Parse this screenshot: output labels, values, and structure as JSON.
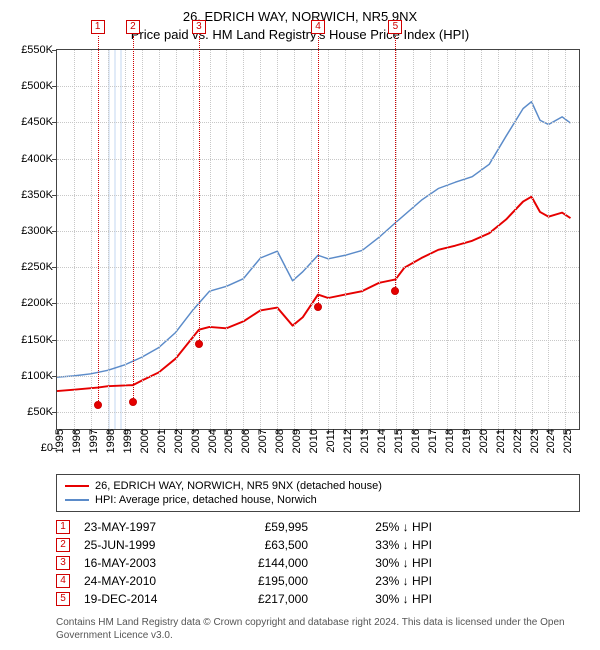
{
  "title": {
    "line1": "26, EDRICH WAY, NORWICH, NR5 9NX",
    "line2": "Price paid vs. HM Land Registry's House Price Index (HPI)"
  },
  "chart": {
    "type": "line",
    "xlim": [
      1995,
      2025.8
    ],
    "ylim": [
      0,
      550000
    ],
    "ytick_step": 50000,
    "y_ticks": [
      {
        "v": 0,
        "label": "£0"
      },
      {
        "v": 50000,
        "label": "£50K"
      },
      {
        "v": 100000,
        "label": "£100K"
      },
      {
        "v": 150000,
        "label": "£150K"
      },
      {
        "v": 200000,
        "label": "£200K"
      },
      {
        "v": 250000,
        "label": "£250K"
      },
      {
        "v": 300000,
        "label": "£300K"
      },
      {
        "v": 350000,
        "label": "£350K"
      },
      {
        "v": 400000,
        "label": "£400K"
      },
      {
        "v": 450000,
        "label": "£450K"
      },
      {
        "v": 500000,
        "label": "£500K"
      },
      {
        "v": 550000,
        "label": "£550K"
      }
    ],
    "x_ticks": [
      1995,
      1996,
      1997,
      1998,
      1999,
      2000,
      2001,
      2002,
      2003,
      2004,
      2005,
      2006,
      2007,
      2008,
      2009,
      2010,
      2011,
      2012,
      2013,
      2014,
      2015,
      2016,
      2017,
      2018,
      2019,
      2020,
      2021,
      2022,
      2023,
      2024,
      2025
    ],
    "hatch_years": [
      [
        1998,
        1999
      ]
    ],
    "grid_color": "#c8c8c8",
    "axis_color": "#444444",
    "background_color": "#ffffff",
    "series": [
      {
        "name": "property",
        "label": "26, EDRICH WAY, NORWICH, NR5 9NX (detached house)",
        "color": "#e60000",
        "width": 2,
        "points": [
          [
            1995,
            55000
          ],
          [
            1996,
            57000
          ],
          [
            1997.4,
            59995
          ],
          [
            1998,
            62000
          ],
          [
            1999.48,
            63500
          ],
          [
            2000,
            70000
          ],
          [
            2001,
            82000
          ],
          [
            2002,
            102000
          ],
          [
            2003.37,
            144000
          ],
          [
            2004,
            148000
          ],
          [
            2005,
            146000
          ],
          [
            2006,
            156000
          ],
          [
            2007,
            172000
          ],
          [
            2008,
            176000
          ],
          [
            2008.9,
            150000
          ],
          [
            2009.5,
            162000
          ],
          [
            2010.4,
            195000
          ],
          [
            2011,
            190000
          ],
          [
            2012,
            195000
          ],
          [
            2013,
            200000
          ],
          [
            2014,
            212000
          ],
          [
            2014.97,
            217000
          ],
          [
            2015.5,
            234000
          ],
          [
            2016.5,
            248000
          ],
          [
            2017.5,
            260000
          ],
          [
            2018.5,
            266000
          ],
          [
            2019.5,
            273000
          ],
          [
            2020.5,
            284000
          ],
          [
            2021.5,
            304000
          ],
          [
            2022.5,
            330000
          ],
          [
            2023,
            337000
          ],
          [
            2023.5,
            315000
          ],
          [
            2024,
            308000
          ],
          [
            2024.8,
            314000
          ],
          [
            2025.3,
            306000
          ]
        ]
      },
      {
        "name": "hpi",
        "label": "HPI: Average price, detached house, Norwich",
        "color": "#5b8bc9",
        "width": 1.5,
        "points": [
          [
            1995,
            75000
          ],
          [
            1996,
            77000
          ],
          [
            1997,
            80000
          ],
          [
            1998,
            85000
          ],
          [
            1999,
            93000
          ],
          [
            2000,
            104000
          ],
          [
            2001,
            118000
          ],
          [
            2002,
            140000
          ],
          [
            2003,
            172000
          ],
          [
            2004,
            200000
          ],
          [
            2005,
            207000
          ],
          [
            2006,
            218000
          ],
          [
            2007,
            248000
          ],
          [
            2008,
            258000
          ],
          [
            2008.9,
            215000
          ],
          [
            2009.5,
            228000
          ],
          [
            2010.4,
            252000
          ],
          [
            2011,
            247000
          ],
          [
            2012,
            252000
          ],
          [
            2013,
            259000
          ],
          [
            2014,
            278000
          ],
          [
            2015,
            300000
          ],
          [
            2016.5,
            332000
          ],
          [
            2017.5,
            349000
          ],
          [
            2018.5,
            358000
          ],
          [
            2019.5,
            366000
          ],
          [
            2020.5,
            384000
          ],
          [
            2021.5,
            425000
          ],
          [
            2022.5,
            465000
          ],
          [
            2023,
            475000
          ],
          [
            2023.5,
            448000
          ],
          [
            2024,
            442000
          ],
          [
            2024.8,
            453000
          ],
          [
            2025.3,
            444000
          ]
        ]
      }
    ],
    "sale_markers": [
      {
        "n": 1,
        "x": 1997.4,
        "y": 59995
      },
      {
        "n": 2,
        "x": 1999.48,
        "y": 63500
      },
      {
        "n": 3,
        "x": 2003.37,
        "y": 144000
      },
      {
        "n": 4,
        "x": 2010.4,
        "y": 195000
      },
      {
        "n": 5,
        "x": 2014.97,
        "y": 217000
      }
    ]
  },
  "legend": {
    "items": [
      {
        "color": "#e60000",
        "key": "chart.series.0.label"
      },
      {
        "color": "#5b8bc9",
        "key": "chart.series.1.label"
      }
    ]
  },
  "sales_table": {
    "arrow": "↓",
    "suffix": "HPI",
    "rows": [
      {
        "n": 1,
        "date": "23-MAY-1997",
        "price": "£59,995",
        "diff_pct": "25%"
      },
      {
        "n": 2,
        "date": "25-JUN-1999",
        "price": "£63,500",
        "diff_pct": "33%"
      },
      {
        "n": 3,
        "date": "16-MAY-2003",
        "price": "£144,000",
        "diff_pct": "30%"
      },
      {
        "n": 4,
        "date": "24-MAY-2010",
        "price": "£195,000",
        "diff_pct": "23%"
      },
      {
        "n": 5,
        "date": "19-DEC-2014",
        "price": "£217,000",
        "diff_pct": "30%"
      }
    ]
  },
  "footer": {
    "text": "Contains HM Land Registry data © Crown copyright and database right 2024. This data is licensed under the Open Government Licence v3.0."
  }
}
